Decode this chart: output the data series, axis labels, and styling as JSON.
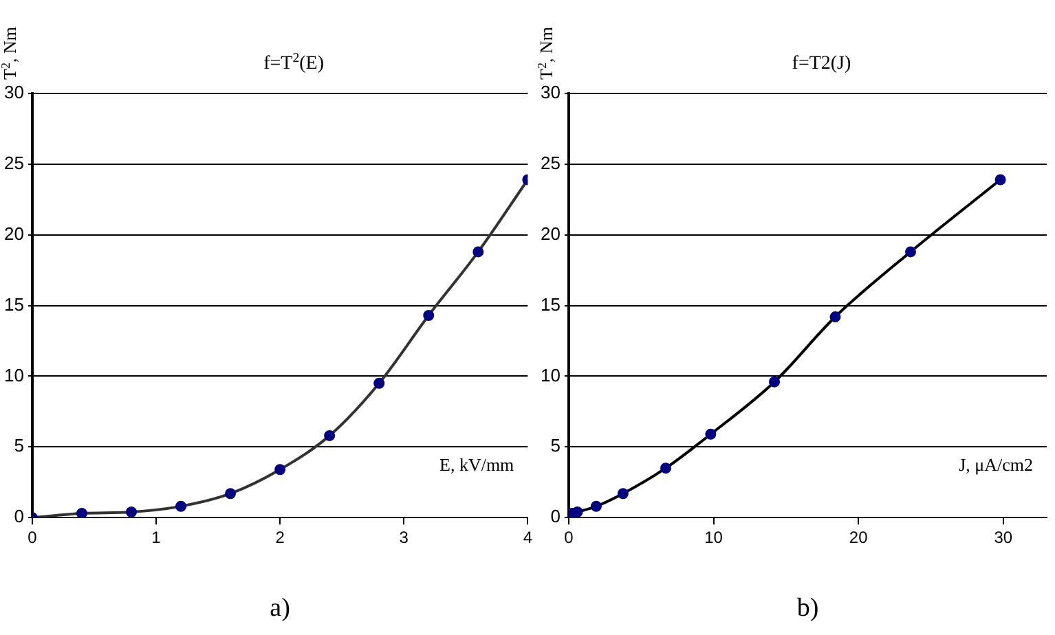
{
  "chart_data": [
    {
      "type": "line",
      "title": "f=T$^{2}$(E)",
      "xlabel": "E, kV/mm",
      "ylabel": "T$^{2}$, Nm",
      "x": [
        0,
        0.4,
        0.8,
        1.2,
        1.6,
        2.0,
        2.4,
        2.8,
        3.2,
        3.6,
        4.0
      ],
      "series": [
        {
          "color": "#333333",
          "values": [
            0,
            0.3,
            0.4,
            0.8,
            1.7,
            3.4,
            5.8,
            9.5,
            14.3,
            18.8,
            23.9
          ]
        }
      ],
      "xlim": [
        0,
        4
      ],
      "xticks": [
        0,
        1,
        2,
        3,
        4
      ],
      "ylim": [
        0,
        30
      ],
      "yticks": [
        0,
        5,
        10,
        15,
        20,
        25,
        30
      ],
      "grid": "y",
      "marker": "circle",
      "annotations": [
        "a)"
      ]
    },
    {
      "type": "line",
      "title": "f=T2(J)",
      "xlabel": "J, μA/cm2",
      "ylabel": "T$^{2}$, Nm",
      "x": [
        0,
        0.24,
        0.6,
        1.9,
        3.75,
        6.7,
        9.8,
        14.2,
        18.4,
        23.6,
        29.8
      ],
      "series": [
        {
          "color": "#000000",
          "values": [
            0,
            0.3,
            0.4,
            0.8,
            1.7,
            3.5,
            5.9,
            9.6,
            14.2,
            18.8,
            23.9
          ]
        }
      ],
      "xlim": [
        0,
        33
      ],
      "xticks": [
        0,
        10,
        20,
        30
      ],
      "ylim": [
        0,
        30
      ],
      "yticks": [
        0,
        5,
        10,
        15,
        20,
        25,
        30
      ],
      "grid": "y",
      "marker": "circle",
      "annotations": [
        "b)"
      ]
    }
  ]
}
